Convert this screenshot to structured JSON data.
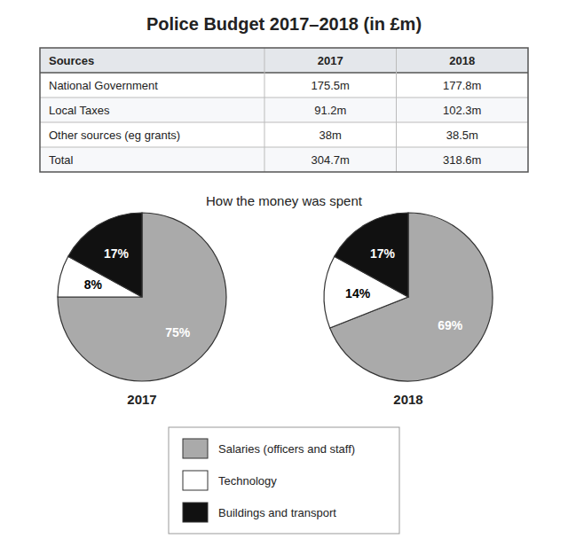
{
  "chart_data": [
    {
      "type": "table",
      "title": "Police Budget 2017–2018 (in £m)",
      "row_header": "Sources",
      "categories": [
        "National Government",
        "Local Taxes",
        "Other sources (eg grants)",
        "Total"
      ],
      "series": [
        {
          "name": "2017",
          "values": [
            175.5,
            91.2,
            38,
            304.7
          ],
          "value_labels": [
            "175.5m",
            "91.2m",
            "38m",
            "304.7m"
          ]
        },
        {
          "name": "2018",
          "values": [
            177.8,
            102.3,
            38.5,
            318.6
          ],
          "value_labels": [
            "177.8m",
            "102.3m",
            "38.5m",
            "318.6m"
          ]
        }
      ],
      "data_labels": true
    },
    {
      "type": "pie",
      "subtitle": "How the money was spent",
      "title": "2017",
      "categories": [
        "Salaries (officers and staff)",
        "Technology",
        "Buildings and transport"
      ],
      "values": [
        75,
        8,
        17
      ],
      "value_labels": [
        "75%",
        "8%",
        "17%"
      ],
      "colors": [
        "#aaaaaa",
        "#ffffff",
        "#111111"
      ],
      "data_labels": true,
      "legend": "bottom"
    },
    {
      "type": "pie",
      "title": "2018",
      "categories": [
        "Salaries (officers and staff)",
        "Technology",
        "Buildings and transport"
      ],
      "values": [
        69,
        14,
        17
      ],
      "value_labels": [
        "69%",
        "14%",
        "17%"
      ],
      "colors": [
        "#aaaaaa",
        "#ffffff",
        "#111111"
      ],
      "data_labels": true
    }
  ]
}
